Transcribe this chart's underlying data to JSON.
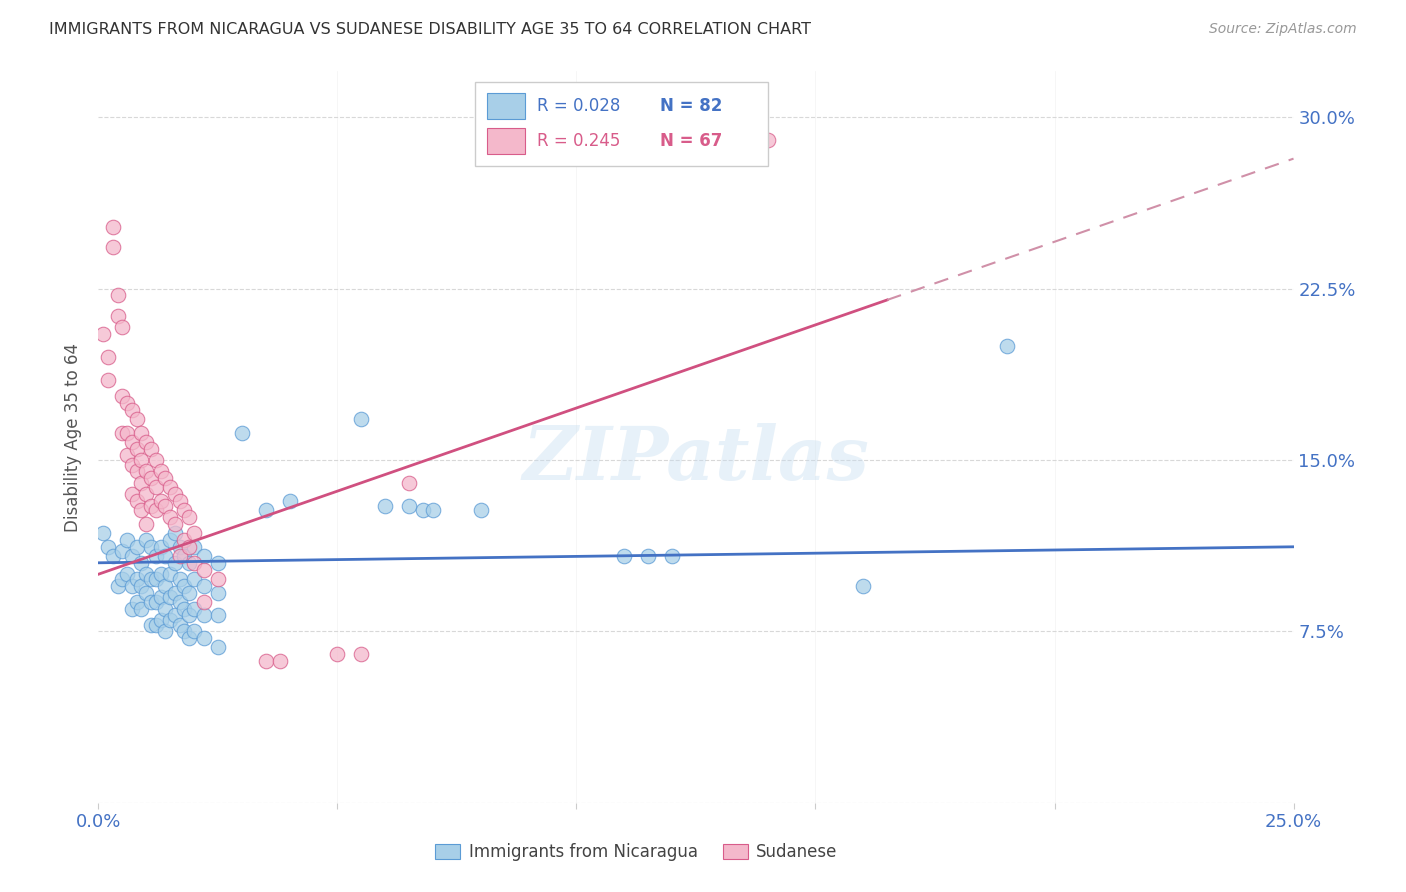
{
  "title": "IMMIGRANTS FROM NICARAGUA VS SUDANESE DISABILITY AGE 35 TO 64 CORRELATION CHART",
  "source": "Source: ZipAtlas.com",
  "ylabel": "Disability Age 35 to 64",
  "xlim": [
    0.0,
    0.25
  ],
  "ylim": [
    0.0,
    0.32
  ],
  "ytick_vals": [
    0.0,
    0.075,
    0.15,
    0.225,
    0.3
  ],
  "ytick_labels": [
    "",
    "7.5%",
    "15.0%",
    "22.5%",
    "30.0%"
  ],
  "xtick_vals": [
    0.0,
    0.05,
    0.1,
    0.15,
    0.2,
    0.25
  ],
  "xtick_labels": [
    "0.0%",
    "",
    "",
    "",
    "",
    "25.0%"
  ],
  "color_blue": "#a8cfe8",
  "color_pink": "#f4b8cb",
  "color_edge_blue": "#5b9bd5",
  "color_edge_pink": "#d85c8a",
  "color_line_blue": "#4472c4",
  "color_line_pink": "#d05080",
  "color_line_pink_dash": "#d090a8",
  "background_color": "#ffffff",
  "grid_color": "#d8d8d8",
  "watermark": "ZIPatlas",
  "nicaragua_data": [
    [
      0.001,
      0.118
    ],
    [
      0.002,
      0.112
    ],
    [
      0.003,
      0.108
    ],
    [
      0.004,
      0.095
    ],
    [
      0.005,
      0.11
    ],
    [
      0.005,
      0.098
    ],
    [
      0.006,
      0.115
    ],
    [
      0.006,
      0.1
    ],
    [
      0.007,
      0.108
    ],
    [
      0.007,
      0.095
    ],
    [
      0.007,
      0.085
    ],
    [
      0.008,
      0.112
    ],
    [
      0.008,
      0.098
    ],
    [
      0.008,
      0.088
    ],
    [
      0.009,
      0.105
    ],
    [
      0.009,
      0.095
    ],
    [
      0.009,
      0.085
    ],
    [
      0.01,
      0.115
    ],
    [
      0.01,
      0.1
    ],
    [
      0.01,
      0.092
    ],
    [
      0.011,
      0.112
    ],
    [
      0.011,
      0.098
    ],
    [
      0.011,
      0.088
    ],
    [
      0.011,
      0.078
    ],
    [
      0.012,
      0.108
    ],
    [
      0.012,
      0.098
    ],
    [
      0.012,
      0.088
    ],
    [
      0.012,
      0.078
    ],
    [
      0.013,
      0.112
    ],
    [
      0.013,
      0.1
    ],
    [
      0.013,
      0.09
    ],
    [
      0.013,
      0.08
    ],
    [
      0.014,
      0.108
    ],
    [
      0.014,
      0.095
    ],
    [
      0.014,
      0.085
    ],
    [
      0.014,
      0.075
    ],
    [
      0.015,
      0.115
    ],
    [
      0.015,
      0.1
    ],
    [
      0.015,
      0.09
    ],
    [
      0.015,
      0.08
    ],
    [
      0.016,
      0.118
    ],
    [
      0.016,
      0.105
    ],
    [
      0.016,
      0.092
    ],
    [
      0.016,
      0.082
    ],
    [
      0.017,
      0.112
    ],
    [
      0.017,
      0.098
    ],
    [
      0.017,
      0.088
    ],
    [
      0.017,
      0.078
    ],
    [
      0.018,
      0.108
    ],
    [
      0.018,
      0.095
    ],
    [
      0.018,
      0.085
    ],
    [
      0.018,
      0.075
    ],
    [
      0.019,
      0.105
    ],
    [
      0.019,
      0.092
    ],
    [
      0.019,
      0.082
    ],
    [
      0.019,
      0.072
    ],
    [
      0.02,
      0.112
    ],
    [
      0.02,
      0.098
    ],
    [
      0.02,
      0.085
    ],
    [
      0.02,
      0.075
    ],
    [
      0.022,
      0.108
    ],
    [
      0.022,
      0.095
    ],
    [
      0.022,
      0.082
    ],
    [
      0.022,
      0.072
    ],
    [
      0.025,
      0.105
    ],
    [
      0.025,
      0.092
    ],
    [
      0.025,
      0.082
    ],
    [
      0.025,
      0.068
    ],
    [
      0.03,
      0.162
    ],
    [
      0.035,
      0.128
    ],
    [
      0.04,
      0.132
    ],
    [
      0.055,
      0.168
    ],
    [
      0.06,
      0.13
    ],
    [
      0.065,
      0.13
    ],
    [
      0.068,
      0.128
    ],
    [
      0.07,
      0.128
    ],
    [
      0.08,
      0.128
    ],
    [
      0.11,
      0.108
    ],
    [
      0.115,
      0.108
    ],
    [
      0.12,
      0.108
    ],
    [
      0.16,
      0.095
    ],
    [
      0.19,
      0.2
    ]
  ],
  "sudanese_data": [
    [
      0.001,
      0.205
    ],
    [
      0.002,
      0.195
    ],
    [
      0.002,
      0.185
    ],
    [
      0.003,
      0.252
    ],
    [
      0.003,
      0.243
    ],
    [
      0.004,
      0.222
    ],
    [
      0.004,
      0.213
    ],
    [
      0.005,
      0.208
    ],
    [
      0.005,
      0.178
    ],
    [
      0.005,
      0.162
    ],
    [
      0.006,
      0.175
    ],
    [
      0.006,
      0.162
    ],
    [
      0.006,
      0.152
    ],
    [
      0.007,
      0.172
    ],
    [
      0.007,
      0.158
    ],
    [
      0.007,
      0.148
    ],
    [
      0.007,
      0.135
    ],
    [
      0.008,
      0.168
    ],
    [
      0.008,
      0.155
    ],
    [
      0.008,
      0.145
    ],
    [
      0.008,
      0.132
    ],
    [
      0.009,
      0.162
    ],
    [
      0.009,
      0.15
    ],
    [
      0.009,
      0.14
    ],
    [
      0.009,
      0.128
    ],
    [
      0.01,
      0.158
    ],
    [
      0.01,
      0.145
    ],
    [
      0.01,
      0.135
    ],
    [
      0.01,
      0.122
    ],
    [
      0.011,
      0.155
    ],
    [
      0.011,
      0.142
    ],
    [
      0.011,
      0.13
    ],
    [
      0.012,
      0.15
    ],
    [
      0.012,
      0.138
    ],
    [
      0.012,
      0.128
    ],
    [
      0.013,
      0.145
    ],
    [
      0.013,
      0.132
    ],
    [
      0.014,
      0.142
    ],
    [
      0.014,
      0.13
    ],
    [
      0.015,
      0.138
    ],
    [
      0.015,
      0.125
    ],
    [
      0.016,
      0.135
    ],
    [
      0.016,
      0.122
    ],
    [
      0.017,
      0.132
    ],
    [
      0.017,
      0.108
    ],
    [
      0.018,
      0.128
    ],
    [
      0.018,
      0.115
    ],
    [
      0.019,
      0.125
    ],
    [
      0.019,
      0.112
    ],
    [
      0.02,
      0.118
    ],
    [
      0.02,
      0.105
    ],
    [
      0.022,
      0.102
    ],
    [
      0.022,
      0.088
    ],
    [
      0.025,
      0.098
    ],
    [
      0.035,
      0.062
    ],
    [
      0.038,
      0.062
    ],
    [
      0.05,
      0.065
    ],
    [
      0.055,
      0.065
    ],
    [
      0.065,
      0.14
    ],
    [
      0.14,
      0.29
    ]
  ]
}
